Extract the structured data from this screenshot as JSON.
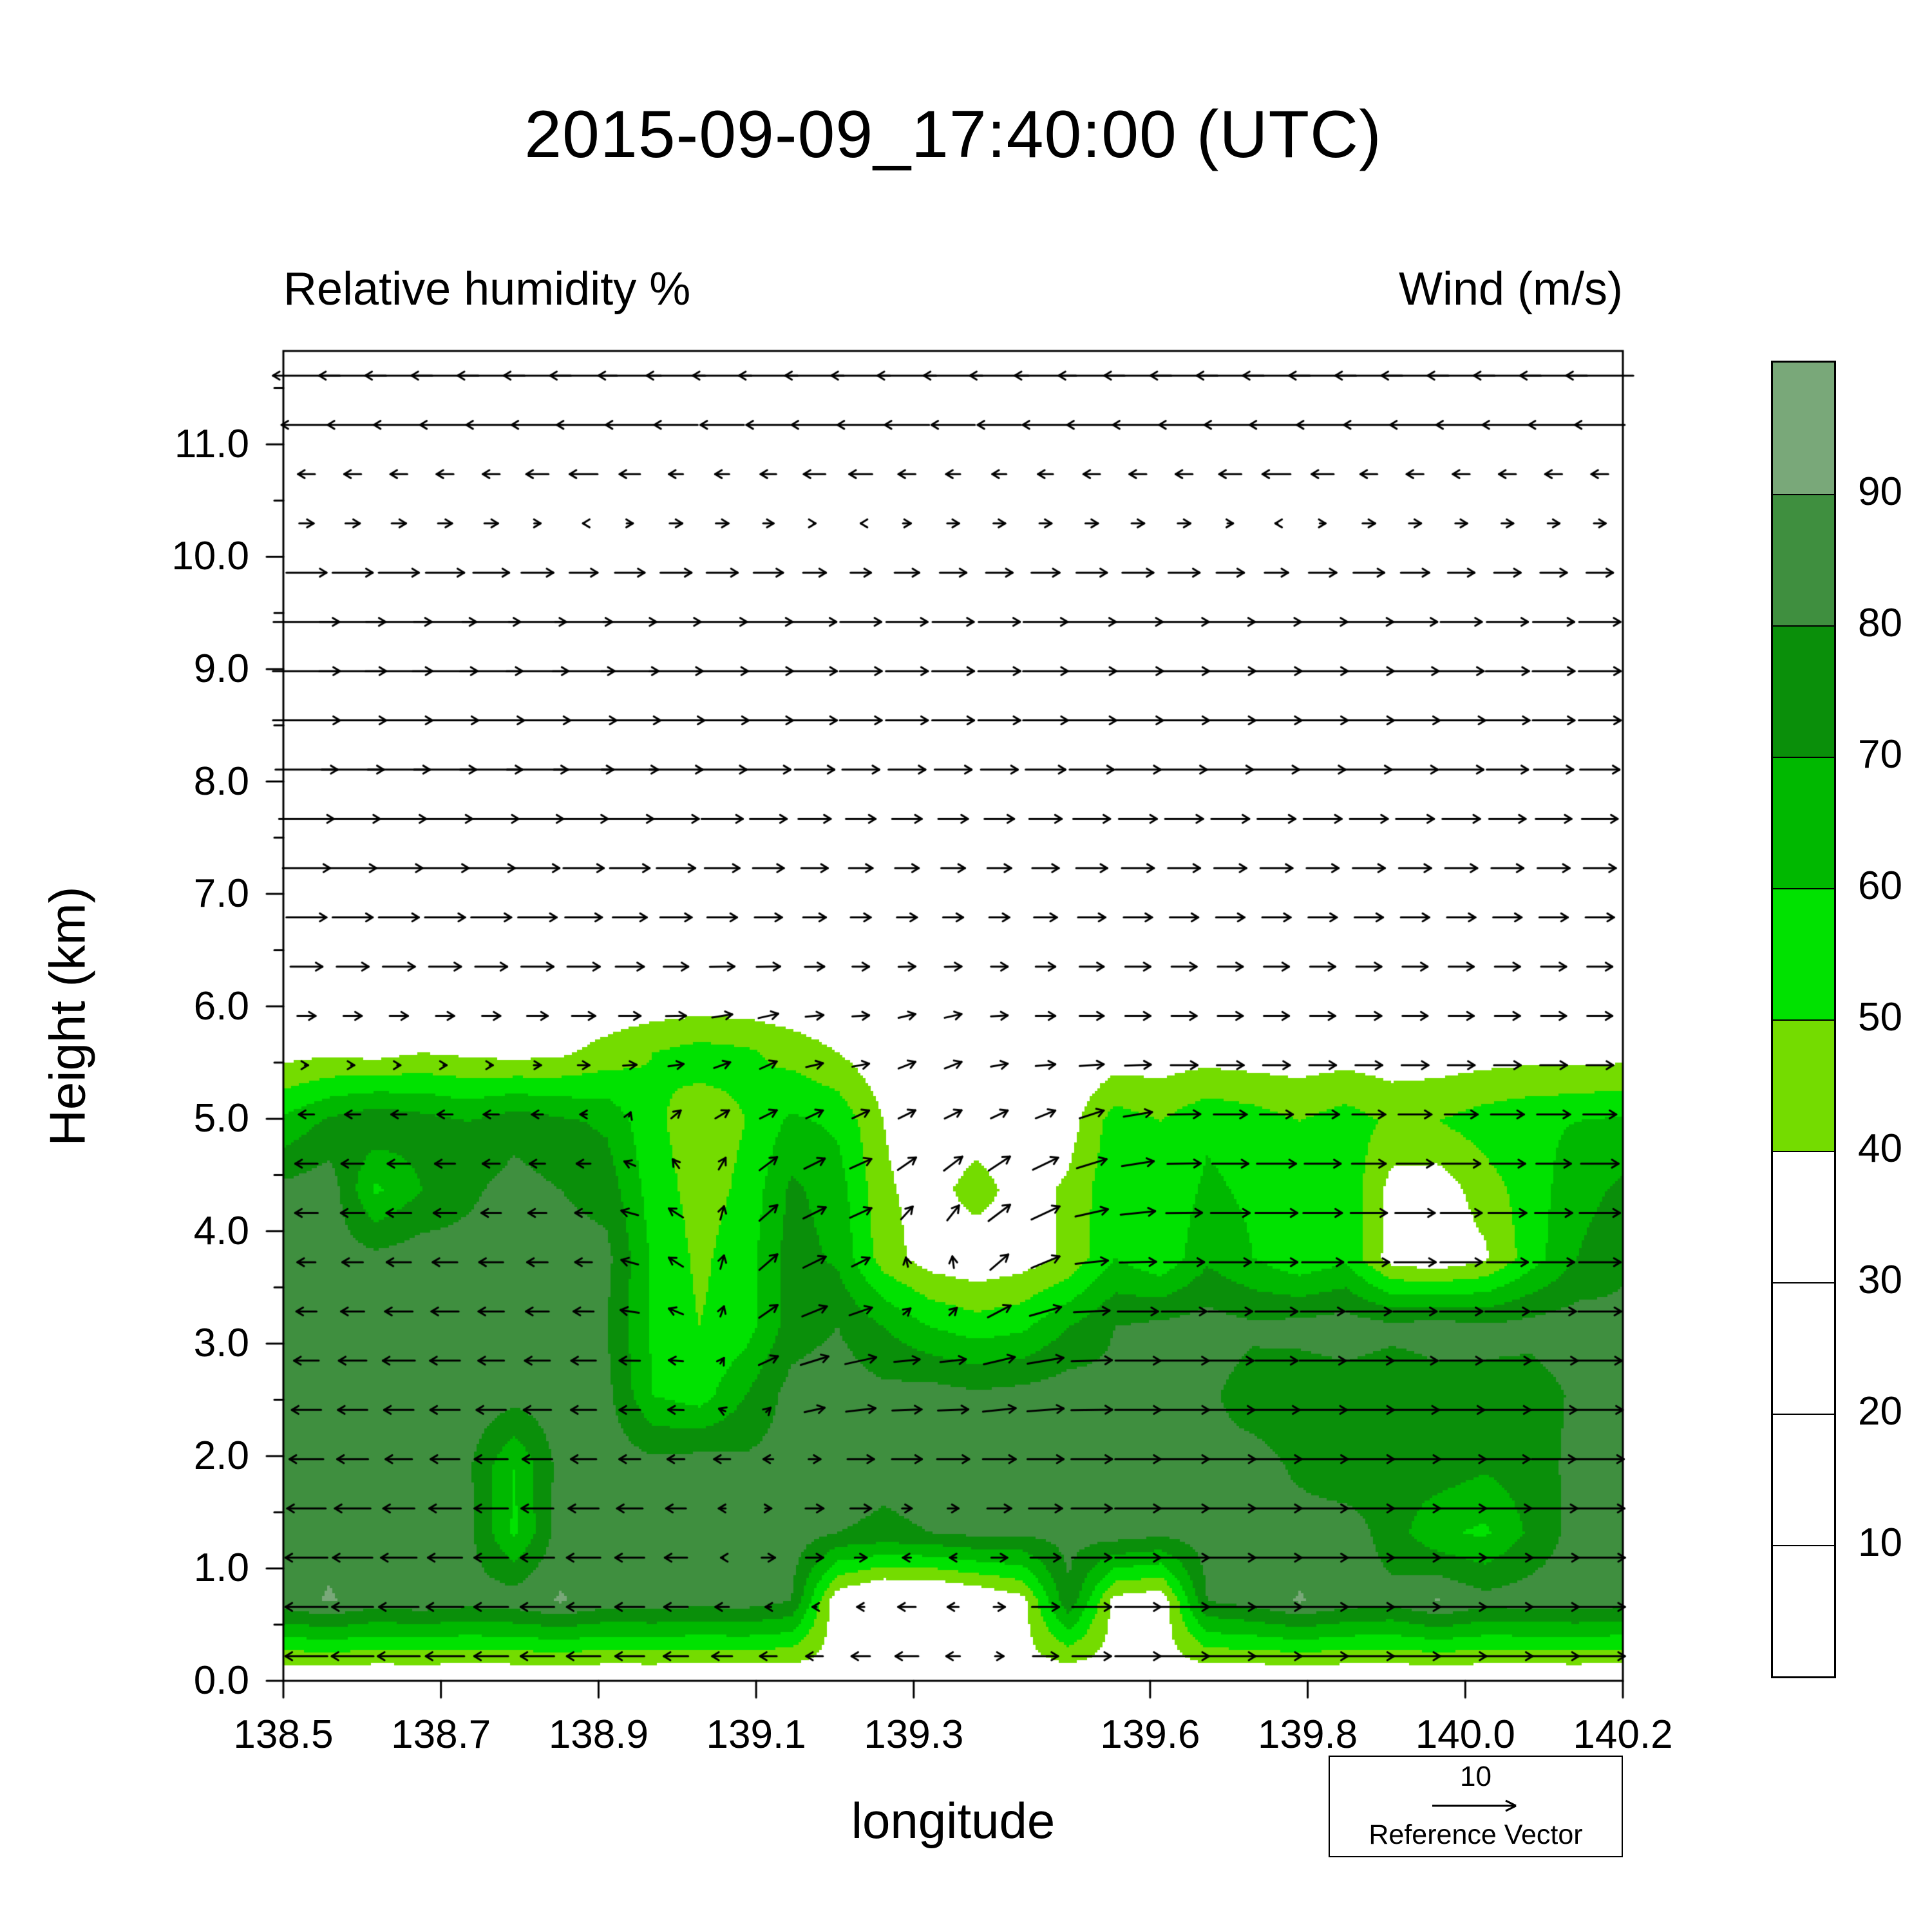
{
  "chart_data": {
    "type": "heatmap",
    "title": "2015-09-09_17:40:00 (UTC)",
    "subtitle_left": "Relative humidity %",
    "subtitle_right": "Wind (m/s)",
    "xlabel": "longitude",
    "ylabel": "Height (km)",
    "xlim": [
      138.5,
      140.2
    ],
    "ylim": [
      0,
      11.83
    ],
    "grid": false,
    "x_ticks": [
      138.5,
      138.7,
      138.9,
      139.1,
      139.3,
      139.6,
      139.8,
      140.0,
      140.2
    ],
    "x_tick_labels": [
      "138.5",
      "138.7",
      "138.9",
      "139.1",
      "139.3",
      "139.6",
      "139.8",
      "140.0",
      "140.2"
    ],
    "y_ticks": [
      0,
      1,
      2,
      3,
      4,
      5,
      6,
      7,
      8,
      9,
      10,
      11
    ],
    "y_tick_labels": [
      "0.0",
      "1.0",
      "2.0",
      "3.0",
      "4.0",
      "5.0",
      "6.0",
      "7.0",
      "8.0",
      "9.0",
      "10.0",
      "11.0"
    ],
    "colorbar": {
      "levels": [
        40,
        50,
        60,
        70,
        80,
        90
      ],
      "band_colors": [
        "#ffffff",
        "#74dc00",
        "#00e200",
        "#00b800",
        "#0a8f0a",
        "#3f8f3f",
        "#79a879"
      ],
      "tick_labels": [
        "10",
        "20",
        "30",
        "40",
        "50",
        "60",
        "70",
        "80",
        "90"
      ],
      "range": [
        0,
        100
      ]
    },
    "humidity": {
      "units": "%",
      "x0": 138.5,
      "dx": 0.0586206897,
      "nx": 30,
      "y0": 0.1,
      "dy": 0.61,
      "ny": 20,
      "rows": [
        36,
        [
          86,
          91,
          85,
          87,
          84,
          86,
          91,
          85,
          86,
          84,
          85,
          80,
          32,
          22,
          22,
          28,
          36,
          78,
          36,
          32,
          80,
          84,
          91,
          85,
          83,
          91,
          84,
          85,
          86,
          84
        ],
        [
          85,
          87,
          84,
          86,
          83,
          58,
          85,
          83,
          86,
          84,
          85,
          86,
          80,
          78,
          80,
          83,
          82,
          84,
          86,
          83,
          85,
          82,
          84,
          86,
          75,
          62,
          58,
          72,
          84,
          86
        ],
        [
          84,
          86,
          88,
          85,
          82,
          60,
          84,
          86,
          83,
          85,
          82,
          84,
          86,
          83,
          85,
          82,
          84,
          86,
          83,
          85,
          82,
          84,
          78,
          72,
          74,
          76,
          72,
          75,
          83,
          85
        ],
        [
          86,
          84,
          82,
          85,
          87,
          84,
          86,
          83,
          60,
          55,
          70,
          84,
          86,
          83,
          85,
          82,
          84,
          86,
          83,
          85,
          82,
          75,
          72,
          74,
          72,
          75,
          78,
          74,
          82,
          84
        ],
        [
          84,
          86,
          83,
          85,
          82,
          84,
          85,
          80,
          58,
          50,
          55,
          75,
          80,
          70,
          60,
          55,
          58,
          70,
          80,
          83,
          85,
          82,
          84,
          86,
          83,
          85,
          82,
          84,
          86,
          83
        ],
        [
          82,
          85,
          83,
          86,
          84,
          82,
          85,
          83,
          58,
          48,
          55,
          75,
          68,
          45,
          35,
          32,
          35,
          42,
          60,
          52,
          68,
          60,
          52,
          58,
          35,
          32,
          38,
          55,
          70,
          78
        ],
        [
          83,
          86,
          58,
          70,
          78,
          84,
          80,
          76,
          55,
          46,
          52,
          72,
          65,
          42,
          35,
          45,
          35,
          42,
          58,
          52,
          62,
          58,
          52,
          58,
          36,
          34,
          45,
          55,
          66,
          72
        ],
        [
          62,
          72,
          78,
          74,
          70,
          76,
          72,
          68,
          52,
          45,
          50,
          62,
          58,
          40,
          30,
          34,
          30,
          35,
          55,
          50,
          58,
          55,
          50,
          55,
          48,
          50,
          55,
          58,
          60,
          62
        ],
        [
          36,
          38,
          36,
          40,
          38,
          36,
          38,
          44,
          50,
          54,
          52,
          46,
          40,
          32,
          28,
          28,
          28,
          30,
          33,
          34,
          35,
          34,
          34,
          35,
          34,
          34,
          35,
          36,
          35,
          36
        ],
        28,
        25,
        22,
        20,
        18,
        16,
        15,
        12,
        10,
        10
      ]
    },
    "wind": {
      "units": "m/s",
      "x": [
        138.55,
        138.66,
        138.77,
        138.88,
        138.99,
        139.1,
        139.21,
        139.32,
        139.43,
        139.54,
        139.65,
        139.76,
        139.87,
        139.98,
        140.09,
        140.2
      ],
      "y": [
        0.4,
        1.2,
        2.0,
        2.8,
        3.6,
        4.4,
        5.0,
        5.6,
        6.4,
        7.4,
        8.4,
        9.4,
        10.4,
        11.4
      ],
      "u": [
        [
          -5,
          -5,
          -4,
          -4,
          -3,
          -2,
          -2,
          -3,
          2,
          5,
          6,
          6,
          6,
          6,
          6,
          6
        ],
        [
          -5,
          -4,
          -4,
          -4,
          -3,
          2,
          3,
          -2,
          3,
          5,
          6,
          6,
          6,
          6,
          6,
          6
        ],
        [
          -4,
          -3,
          -4,
          -3,
          -2,
          -2,
          3,
          4,
          4,
          5,
          6,
          6,
          6,
          6,
          5,
          6
        ],
        [
          -3,
          -4,
          -3,
          -3,
          -2,
          2,
          4,
          3,
          4,
          5,
          6,
          5,
          6,
          5,
          6,
          5
        ],
        [
          -2,
          -3,
          -3,
          -2,
          -2,
          2,
          3,
          -2,
          3,
          4,
          5,
          5,
          5,
          5,
          5,
          5
        ],
        [
          -3,
          -3,
          -2,
          -2,
          -2,
          2,
          3,
          2,
          3,
          4,
          4,
          5,
          4,
          5,
          4,
          5
        ],
        [
          -2,
          -2,
          -2,
          -1,
          1,
          2,
          2,
          2,
          2,
          3,
          4,
          4,
          4,
          4,
          4,
          4
        ],
        [
          1,
          1,
          1,
          2,
          2,
          2,
          2,
          2,
          2,
          3,
          3,
          3,
          3,
          3,
          3,
          3
        ],
        [
          4,
          4,
          4,
          4,
          3,
          3,
          2,
          2,
          2,
          3,
          3,
          3,
          3,
          3,
          3,
          3
        ],
        [
          6,
          6,
          6,
          5,
          5,
          4,
          3,
          3,
          3,
          4,
          4,
          4,
          4,
          4,
          4,
          4
        ],
        [
          8,
          8,
          8,
          8,
          7,
          6,
          5,
          5,
          5,
          6,
          6,
          6,
          6,
          6,
          5,
          5
        ],
        [
          8,
          8,
          7,
          7,
          6,
          6,
          5,
          5,
          5,
          6,
          6,
          6,
          6,
          5,
          5,
          5
        ],
        [
          1,
          1,
          1,
          -1,
          1,
          1,
          -1,
          1,
          1,
          1,
          1,
          -1,
          1,
          1,
          1,
          1
        ],
        [
          -8,
          -8,
          -8,
          -8,
          -7,
          -7,
          -7,
          -7,
          -7,
          -8,
          -8,
          -8,
          -8,
          -8,
          -8,
          -8
        ]
      ],
      "v": [
        0,
        0,
        0,
        [
          0,
          0,
          0,
          0,
          0,
          1,
          1,
          0,
          1,
          0,
          0,
          0,
          0,
          0,
          0,
          0
        ],
        [
          0,
          0,
          0,
          0,
          1,
          2,
          1,
          1,
          2,
          0,
          0,
          0,
          0,
          0,
          0,
          0
        ],
        [
          0,
          0,
          0,
          0,
          1,
          2,
          1,
          2,
          2,
          1,
          0,
          0,
          0,
          0,
          0,
          0
        ],
        [
          0,
          0,
          0,
          0,
          1,
          1,
          1,
          1,
          1,
          1,
          0,
          0,
          0,
          0,
          0,
          0
        ],
        [
          0,
          0,
          0,
          0,
          0,
          1,
          0,
          1,
          0,
          0,
          0,
          0,
          0,
          0,
          0,
          0
        ],
        0,
        0,
        0,
        0,
        0,
        0
      ],
      "reference": {
        "value": "10",
        "label": "Reference Vector",
        "speed": 10
      }
    }
  }
}
